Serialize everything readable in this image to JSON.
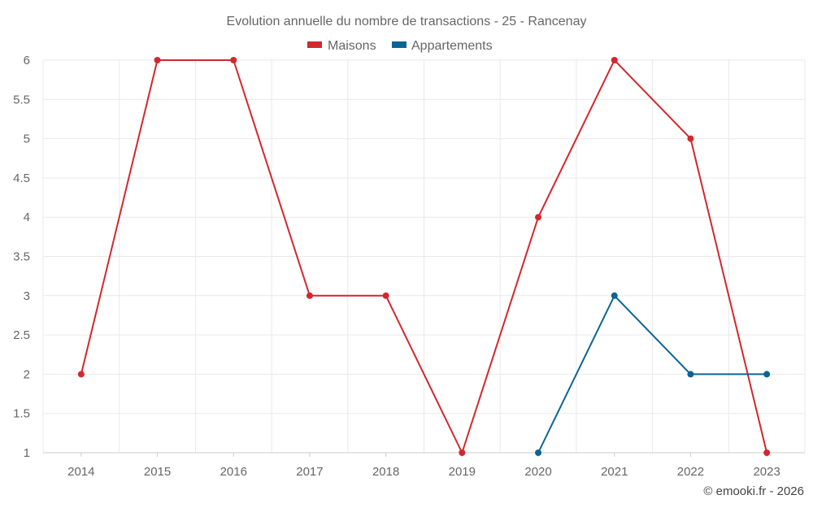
{
  "chart_data": {
    "type": "line",
    "title": "Evolution annuelle du nombre de transactions - 25 - Rancenay",
    "x": [
      "2014",
      "2015",
      "2016",
      "2017",
      "2018",
      "2019",
      "2020",
      "2021",
      "2022",
      "2023"
    ],
    "series": [
      {
        "name": "Maisons",
        "color": "#d3272e",
        "values": [
          2,
          6,
          6,
          3,
          3,
          1,
          4,
          6,
          5,
          1
        ]
      },
      {
        "name": "Appartements",
        "color": "#0b6496",
        "values": [
          null,
          null,
          null,
          null,
          null,
          null,
          1,
          3,
          2,
          2
        ]
      }
    ],
    "yticks": [
      "1",
      "1.5",
      "2",
      "2.5",
      "3",
      "3.5",
      "4",
      "4.5",
      "5",
      "5.5",
      "6"
    ],
    "ylim": [
      1,
      6
    ],
    "grid": true,
    "legend_position": "top-center"
  },
  "credit": "© emooki.fr - 2026"
}
